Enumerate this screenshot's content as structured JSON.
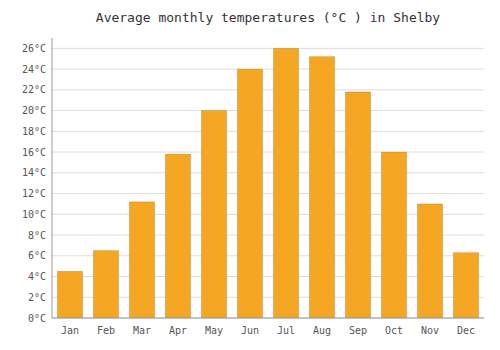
{
  "chart_data": {
    "type": "bar",
    "title": "Average monthly temperatures (°C ) in Shelby",
    "categories": [
      "Jan",
      "Feb",
      "Mar",
      "Apr",
      "May",
      "Jun",
      "Jul",
      "Aug",
      "Sep",
      "Oct",
      "Nov",
      "Dec"
    ],
    "values": [
      4.5,
      6.5,
      11.2,
      15.8,
      20.0,
      24.0,
      26.0,
      25.2,
      21.8,
      16.0,
      11.0,
      6.3
    ],
    "color": "#F5A623",
    "ylim": [
      0,
      27
    ],
    "yticks": [
      {
        "value": 0,
        "label": "0°C"
      },
      {
        "value": 2,
        "label": "2°C"
      },
      {
        "value": 4,
        "label": "4°C"
      },
      {
        "value": 6,
        "label": "6°C"
      },
      {
        "value": 8,
        "label": "8°C"
      },
      {
        "value": 10,
        "label": "10°C"
      },
      {
        "value": 12,
        "label": "12°C"
      },
      {
        "value": 14,
        "label": "14°C"
      },
      {
        "value": 16,
        "label": "16°C"
      },
      {
        "value": 18,
        "label": "18°C"
      },
      {
        "value": 20,
        "label": "20°C"
      },
      {
        "value": 22,
        "label": "22°C"
      },
      {
        "value": 24,
        "label": "24°C"
      },
      {
        "value": 26,
        "label": "26°C"
      }
    ],
    "grid": true
  }
}
